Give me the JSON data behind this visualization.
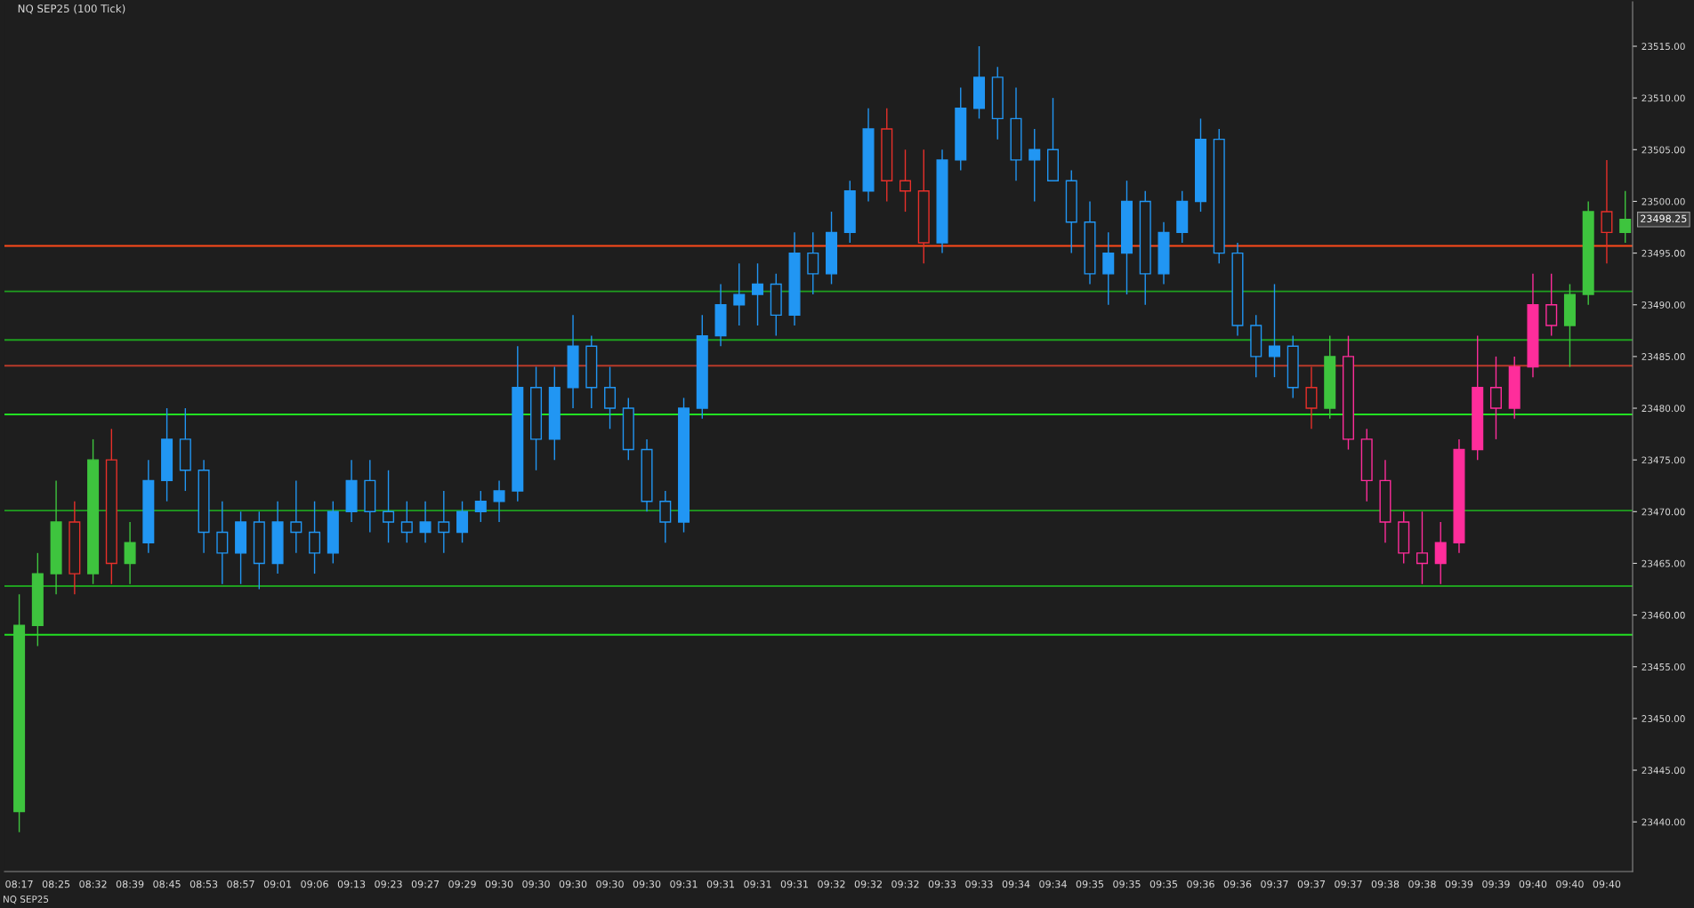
{
  "chart_data": {
    "type": "candlestick",
    "title": "NQ SEP25 (100 Tick)",
    "categories": [
      "08:17",
      null,
      "08:25",
      null,
      "08:32",
      null,
      "08:39",
      null,
      "08:45",
      null,
      "08:53",
      null,
      "08:57",
      null,
      "09:01",
      null,
      "09:06",
      null,
      "09:13",
      null,
      "09:23",
      null,
      "09:27",
      null,
      "09:29",
      null,
      "09:30",
      null,
      "09:30",
      null,
      "09:30",
      null,
      "09:30",
      null,
      "09:30",
      null,
      "09:31",
      null,
      "09:31",
      null,
      "09:31",
      null,
      "09:31",
      null,
      "09:32",
      null,
      "09:32",
      null,
      "09:32",
      null,
      "09:33",
      null,
      "09:33",
      null,
      "09:34",
      null,
      "09:34",
      null,
      "09:35",
      null,
      "09:35",
      null,
      "09:35",
      null,
      "09:36",
      null,
      "09:36",
      null,
      "09:37",
      null,
      "09:37",
      null,
      "09:37",
      null,
      "09:38",
      null,
      "09:38",
      null,
      "09:39",
      null,
      "09:39",
      null,
      "09:40",
      null,
      "09:40",
      null,
      "09:40",
      null
    ],
    "ohlc": [
      [
        23441,
        23462,
        23439,
        23459
      ],
      [
        23459,
        23466,
        23457,
        23464
      ],
      [
        23464,
        23473,
        23462,
        23469
      ],
      [
        23469,
        23471,
        23462,
        23464
      ],
      [
        23464,
        23477,
        23463,
        23475
      ],
      [
        23475,
        23478,
        23463,
        23465
      ],
      [
        23465,
        23469,
        23463,
        23467
      ],
      [
        23467,
        23475,
        23466,
        23473
      ],
      [
        23473,
        23480,
        23471,
        23477
      ],
      [
        23477,
        23480,
        23472,
        23474
      ],
      [
        23474,
        23475,
        23466,
        23468
      ],
      [
        23468,
        23471,
        23463,
        23466
      ],
      [
        23466,
        23470,
        23463,
        23469
      ],
      [
        23469,
        23470,
        23462.5,
        23465
      ],
      [
        23465,
        23471,
        23464,
        23469
      ],
      [
        23469,
        23473,
        23466,
        23468
      ],
      [
        23468,
        23471,
        23464,
        23466
      ],
      [
        23466,
        23471,
        23465,
        23470
      ],
      [
        23470,
        23475,
        23469,
        23473
      ],
      [
        23473,
        23475,
        23468,
        23470
      ],
      [
        23470,
        23474,
        23467,
        23469
      ],
      [
        23469,
        23471,
        23467,
        23468
      ],
      [
        23468,
        23471,
        23467,
        23469
      ],
      [
        23469,
        23472,
        23466,
        23468
      ],
      [
        23468,
        23471,
        23467,
        23470
      ],
      [
        23470,
        23472,
        23469,
        23471
      ],
      [
        23471,
        23473,
        23469,
        23472
      ],
      [
        23472,
        23486,
        23471,
        23482
      ],
      [
        23482,
        23484,
        23474,
        23477
      ],
      [
        23477,
        23484,
        23475,
        23482
      ],
      [
        23482,
        23489,
        23480,
        23486
      ],
      [
        23486,
        23487,
        23480,
        23482
      ],
      [
        23482,
        23484,
        23478,
        23480
      ],
      [
        23480,
        23481,
        23475,
        23476
      ],
      [
        23476,
        23477,
        23470,
        23471
      ],
      [
        23471,
        23472,
        23467,
        23469
      ],
      [
        23469,
        23481,
        23468,
        23480
      ],
      [
        23480,
        23489,
        23479,
        23487
      ],
      [
        23487,
        23492,
        23486,
        23490
      ],
      [
        23490,
        23494,
        23488,
        23491
      ],
      [
        23491,
        23494,
        23488,
        23492
      ],
      [
        23492,
        23493,
        23487,
        23489
      ],
      [
        23489,
        23497,
        23488,
        23495
      ],
      [
        23495,
        23497,
        23491,
        23493
      ],
      [
        23493,
        23499,
        23492,
        23497
      ],
      [
        23497,
        23502,
        23496,
        23501
      ],
      [
        23501,
        23509,
        23500,
        23507
      ],
      [
        23507,
        23509,
        23500,
        23502
      ],
      [
        23502,
        23505,
        23499,
        23501
      ],
      [
        23501,
        23505,
        23494,
        23496
      ],
      [
        23496,
        23505,
        23495,
        23504
      ],
      [
        23504,
        23511,
        23503,
        23509
      ],
      [
        23509,
        23515,
        23508,
        23512
      ],
      [
        23512,
        23513,
        23506,
        23508
      ],
      [
        23508,
        23511,
        23502,
        23504
      ],
      [
        23504,
        23507,
        23500,
        23505
      ],
      [
        23505,
        23510,
        23502,
        23502
      ],
      [
        23502,
        23503,
        23495,
        23498
      ],
      [
        23498,
        23500,
        23492,
        23493
      ],
      [
        23493,
        23497,
        23490,
        23495
      ],
      [
        23495,
        23502,
        23491,
        23500
      ],
      [
        23500,
        23501,
        23490,
        23493
      ],
      [
        23493,
        23498,
        23492,
        23497
      ],
      [
        23497,
        23501,
        23496,
        23500
      ],
      [
        23500,
        23508,
        23499,
        23506
      ],
      [
        23506,
        23507,
        23494,
        23495
      ],
      [
        23495,
        23496,
        23487,
        23488
      ],
      [
        23488,
        23489,
        23483,
        23485
      ],
      [
        23485,
        23492,
        23483,
        23486
      ],
      [
        23486,
        23487,
        23481,
        23482
      ],
      [
        23482,
        23484,
        23478,
        23480
      ],
      [
        23480,
        23487,
        23479,
        23485
      ],
      [
        23485,
        23487,
        23476,
        23477
      ],
      [
        23477,
        23478,
        23471,
        23473
      ],
      [
        23473,
        23475,
        23467,
        23469
      ],
      [
        23469,
        23470,
        23465,
        23466
      ],
      [
        23466,
        23470,
        23463,
        23465
      ],
      [
        23465,
        23469,
        23463,
        23467
      ],
      [
        23467,
        23477,
        23466,
        23476
      ],
      [
        23476,
        23487,
        23475,
        23482
      ],
      [
        23482,
        23485,
        23477,
        23480
      ],
      [
        23480,
        23485,
        23479,
        23484
      ],
      [
        23484,
        23493,
        23483,
        23490
      ],
      [
        23490,
        23493,
        23487,
        23488
      ],
      [
        23488,
        23492,
        23484,
        23491
      ],
      [
        23491,
        23500,
        23490,
        23499
      ],
      [
        23499,
        23504,
        23494,
        23497
      ],
      [
        23497,
        23501,
        23496,
        23498.25
      ]
    ],
    "colors": [
      "#3ec43e",
      "#3ec43e",
      "#3ec43e",
      "#e8302a",
      "#3ec43e",
      "#e8302a",
      "#3ec43e",
      "#2196f3",
      "#2196f3",
      "#2196f3",
      "#2196f3",
      "#2196f3",
      "#2196f3",
      "#2196f3",
      "#2196f3",
      "#2196f3",
      "#2196f3",
      "#2196f3",
      "#2196f3",
      "#2196f3",
      "#2196f3",
      "#2196f3",
      "#2196f3",
      "#2196f3",
      "#2196f3",
      "#2196f3",
      "#2196f3",
      "#2196f3",
      "#2196f3",
      "#2196f3",
      "#2196f3",
      "#2196f3",
      "#2196f3",
      "#2196f3",
      "#2196f3",
      "#2196f3",
      "#2196f3",
      "#2196f3",
      "#2196f3",
      "#2196f3",
      "#2196f3",
      "#2196f3",
      "#2196f3",
      "#2196f3",
      "#2196f3",
      "#2196f3",
      "#2196f3",
      "#e8302a",
      "#e8302a",
      "#e8302a",
      "#2196f3",
      "#2196f3",
      "#2196f3",
      "#2196f3",
      "#2196f3",
      "#2196f3",
      "#2196f3",
      "#2196f3",
      "#2196f3",
      "#2196f3",
      "#2196f3",
      "#2196f3",
      "#2196f3",
      "#2196f3",
      "#2196f3",
      "#2196f3",
      "#2196f3",
      "#2196f3",
      "#2196f3",
      "#2196f3",
      "#e8302a",
      "#3ec43e",
      "#ff2d9b",
      "#ff2d9b",
      "#ff2d9b",
      "#ff2d9b",
      "#ff2d9b",
      "#ff2d9b",
      "#ff2d9b",
      "#ff2d9b",
      "#ff2d9b",
      "#ff2d9b",
      "#ff2d9b",
      "#ff2d9b",
      "#3ec43e",
      "#3ec43e",
      "#e8302a",
      "#3ec43e"
    ],
    "ylim": [
      23435.2,
      23519.3
    ],
    "yticks": [
      {
        "value": 23440,
        "label": "23440.00"
      },
      {
        "value": 23445,
        "label": "23445.00"
      },
      {
        "value": 23450,
        "label": "23450.00"
      },
      {
        "value": 23455,
        "label": "23455.00"
      },
      {
        "value": 23460,
        "label": "23460.00"
      },
      {
        "value": 23465,
        "label": "23465.00"
      },
      {
        "value": 23470,
        "label": "23470.00"
      },
      {
        "value": 23475,
        "label": "23475.00"
      },
      {
        "value": 23480,
        "label": "23480.00"
      },
      {
        "value": 23485,
        "label": "23485.00"
      },
      {
        "value": 23490,
        "label": "23490.00"
      },
      {
        "value": 23495,
        "label": "23495.00"
      },
      {
        "value": 23500,
        "label": "23500.00"
      },
      {
        "value": 23505,
        "label": "23505.00"
      },
      {
        "value": 23510,
        "label": "23510.00"
      },
      {
        "value": 23515,
        "label": "23515.00"
      }
    ],
    "ref_lines": [
      {
        "axis": "y",
        "value": 23458.1,
        "color": "#22e022",
        "line_style": "solid"
      },
      {
        "axis": "y",
        "value": 23479.4,
        "color": "#22e022",
        "line_style": "solid"
      },
      {
        "axis": "y",
        "value": 23462.8,
        "color": "#1fa01f",
        "line_style": "solid"
      },
      {
        "axis": "y",
        "value": 23470.1,
        "color": "#1fa01f",
        "line_style": "solid"
      },
      {
        "axis": "y",
        "value": 23491.3,
        "color": "#1fa01f",
        "line_style": "solid"
      },
      {
        "axis": "y",
        "value": 23486.6,
        "color": "#1fa01f",
        "line_style": "solid"
      },
      {
        "axis": "y",
        "value": 23495.7,
        "color": "#ff4a1a",
        "line_style": "solid"
      },
      {
        "axis": "y",
        "value": 23484.1,
        "color": "#b83a2a",
        "line_style": "solid"
      }
    ],
    "annotations": [
      "23498.25",
      "NQ SEP25"
    ],
    "grid": false,
    "legend": false
  }
}
